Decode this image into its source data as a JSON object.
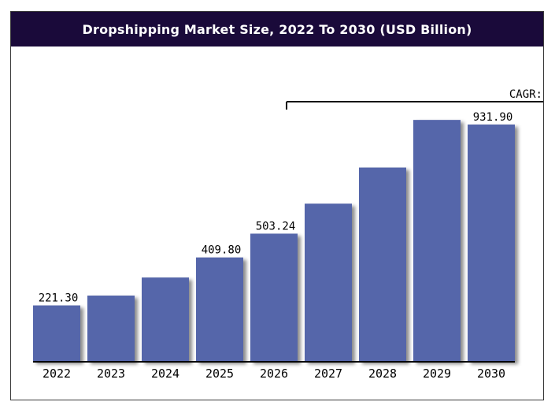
{
  "chart_data": {
    "type": "bar",
    "title": "Dropshipping Market Size, 2022 To 2030 (USD Billion)",
    "categories": [
      "2022",
      "2023",
      "2024",
      "2025",
      "2026",
      "2027",
      "2028",
      "2029",
      "2030"
    ],
    "values": [
      221.3,
      260,
      331,
      409.8,
      503.24,
      621,
      763,
      950,
      931.9
    ],
    "data_labels": [
      "221.30",
      "",
      "",
      "409.80",
      "503.24",
      "",
      "",
      "",
      "931.90"
    ],
    "annotation": "CAGR:",
    "colors": {
      "bar": "#5566aa",
      "title_bg": "#1a0a3a"
    },
    "grid": false,
    "legend": "none"
  }
}
